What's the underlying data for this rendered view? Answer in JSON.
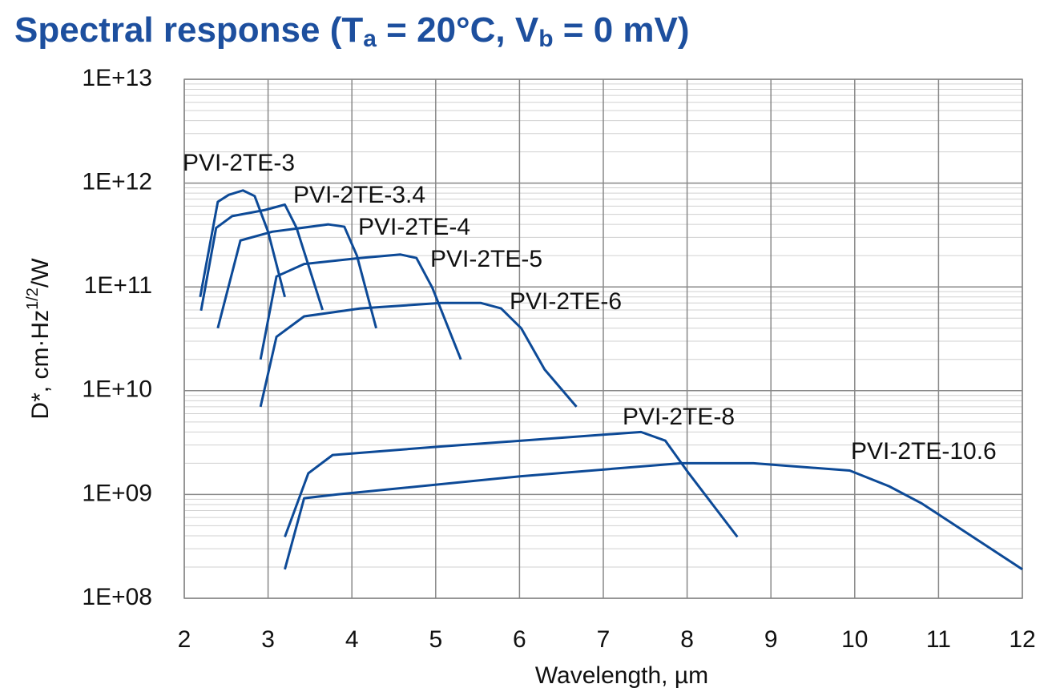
{
  "chart_data": {
    "type": "line",
    "title": [
      "Spectral response (T",
      "a",
      " = 20°C, V",
      "b",
      " = 0 mV)"
    ],
    "x_label": "Wavelength, µm",
    "y_label": [
      "D*, cm·Hz",
      "1/2",
      "/W"
    ],
    "xlim": [
      2,
      12
    ],
    "xticks": [
      2,
      3,
      4,
      5,
      6,
      7,
      8,
      9,
      10,
      11,
      12
    ],
    "ylim": [
      100000000,
      10000000000000
    ],
    "yticks": [
      {
        "value": 100000000,
        "label": "1E+08"
      },
      {
        "value": 1000000000,
        "label": "1E+09"
      },
      {
        "value": 10000000000,
        "label": "1E+10"
      },
      {
        "value": 100000000000,
        "label": "1E+11"
      },
      {
        "value": 1000000000000,
        "label": "1E+12"
      },
      {
        "value": 10000000000000,
        "label": "1E+13"
      }
    ],
    "y_scale": "log",
    "grid": true,
    "minor_grid": true,
    "series": [
      {
        "name": "PVI-2TE-3",
        "color": "#0d4a97",
        "x": [
          2.19,
          2.4,
          2.53,
          2.7,
          2.84,
          3.0,
          3.2
        ],
        "values": [
          80000000000,
          660000000000,
          770000000000,
          850000000000,
          750000000000,
          340000000000,
          80000000000
        ]
      },
      {
        "name": "PVI-2TE-3.4",
        "color": "#0d4a97",
        "x": [
          2.2,
          2.38,
          2.57,
          2.96,
          3.2,
          3.34,
          3.65
        ],
        "values": [
          59000000000,
          370000000000,
          480000000000,
          550000000000,
          620000000000,
          370000000000,
          60000000000
        ]
      },
      {
        "name": "PVI-2TE-4",
        "color": "#0d4a97",
        "x": [
          2.4,
          2.67,
          3.05,
          3.72,
          3.91,
          4.06,
          4.29
        ],
        "values": [
          40000000000,
          280000000000,
          340000000000,
          400000000000,
          380000000000,
          200000000000,
          40000000000
        ]
      },
      {
        "name": "PVI-2TE-5",
        "color": "#0d4a97",
        "x": [
          2.91,
          3.1,
          3.43,
          4.1,
          4.58,
          4.77,
          4.96,
          5.3
        ],
        "values": [
          20000000000,
          126000000000,
          166000000000,
          190000000000,
          205000000000,
          190000000000,
          98000000000,
          20000000000
        ]
      },
      {
        "name": "PVI-2TE-6",
        "color": "#0d4a97",
        "x": [
          2.91,
          3.1,
          3.43,
          4.1,
          5.06,
          5.54,
          5.78,
          6.02,
          6.3,
          6.68
        ],
        "values": [
          7000000000,
          33000000000,
          52000000000,
          62000000000,
          70000000000,
          70000000000,
          62000000000,
          40000000000,
          16000000000,
          7000000000
        ]
      },
      {
        "name": "PVI-2TE-8",
        "color": "#0d4a97",
        "x": [
          3.2,
          3.48,
          3.77,
          5.06,
          7.45,
          7.74,
          8.02,
          8.6
        ],
        "values": [
          390000000,
          1600000000,
          2400000000,
          2900000000,
          4000000000,
          3300000000,
          1600000000,
          390000000
        ]
      },
      {
        "name": "PVI-2TE-10.6",
        "color": "#0d4a97",
        "x": [
          3.2,
          3.43,
          3.82,
          6.02,
          7.93,
          8.79,
          9.94,
          10.41,
          10.8,
          12
        ],
        "values": [
          190000000,
          920000000,
          1000000000,
          1500000000,
          2000000000,
          2000000000,
          1700000000,
          1200000000,
          820000000,
          190000000
        ]
      }
    ]
  }
}
